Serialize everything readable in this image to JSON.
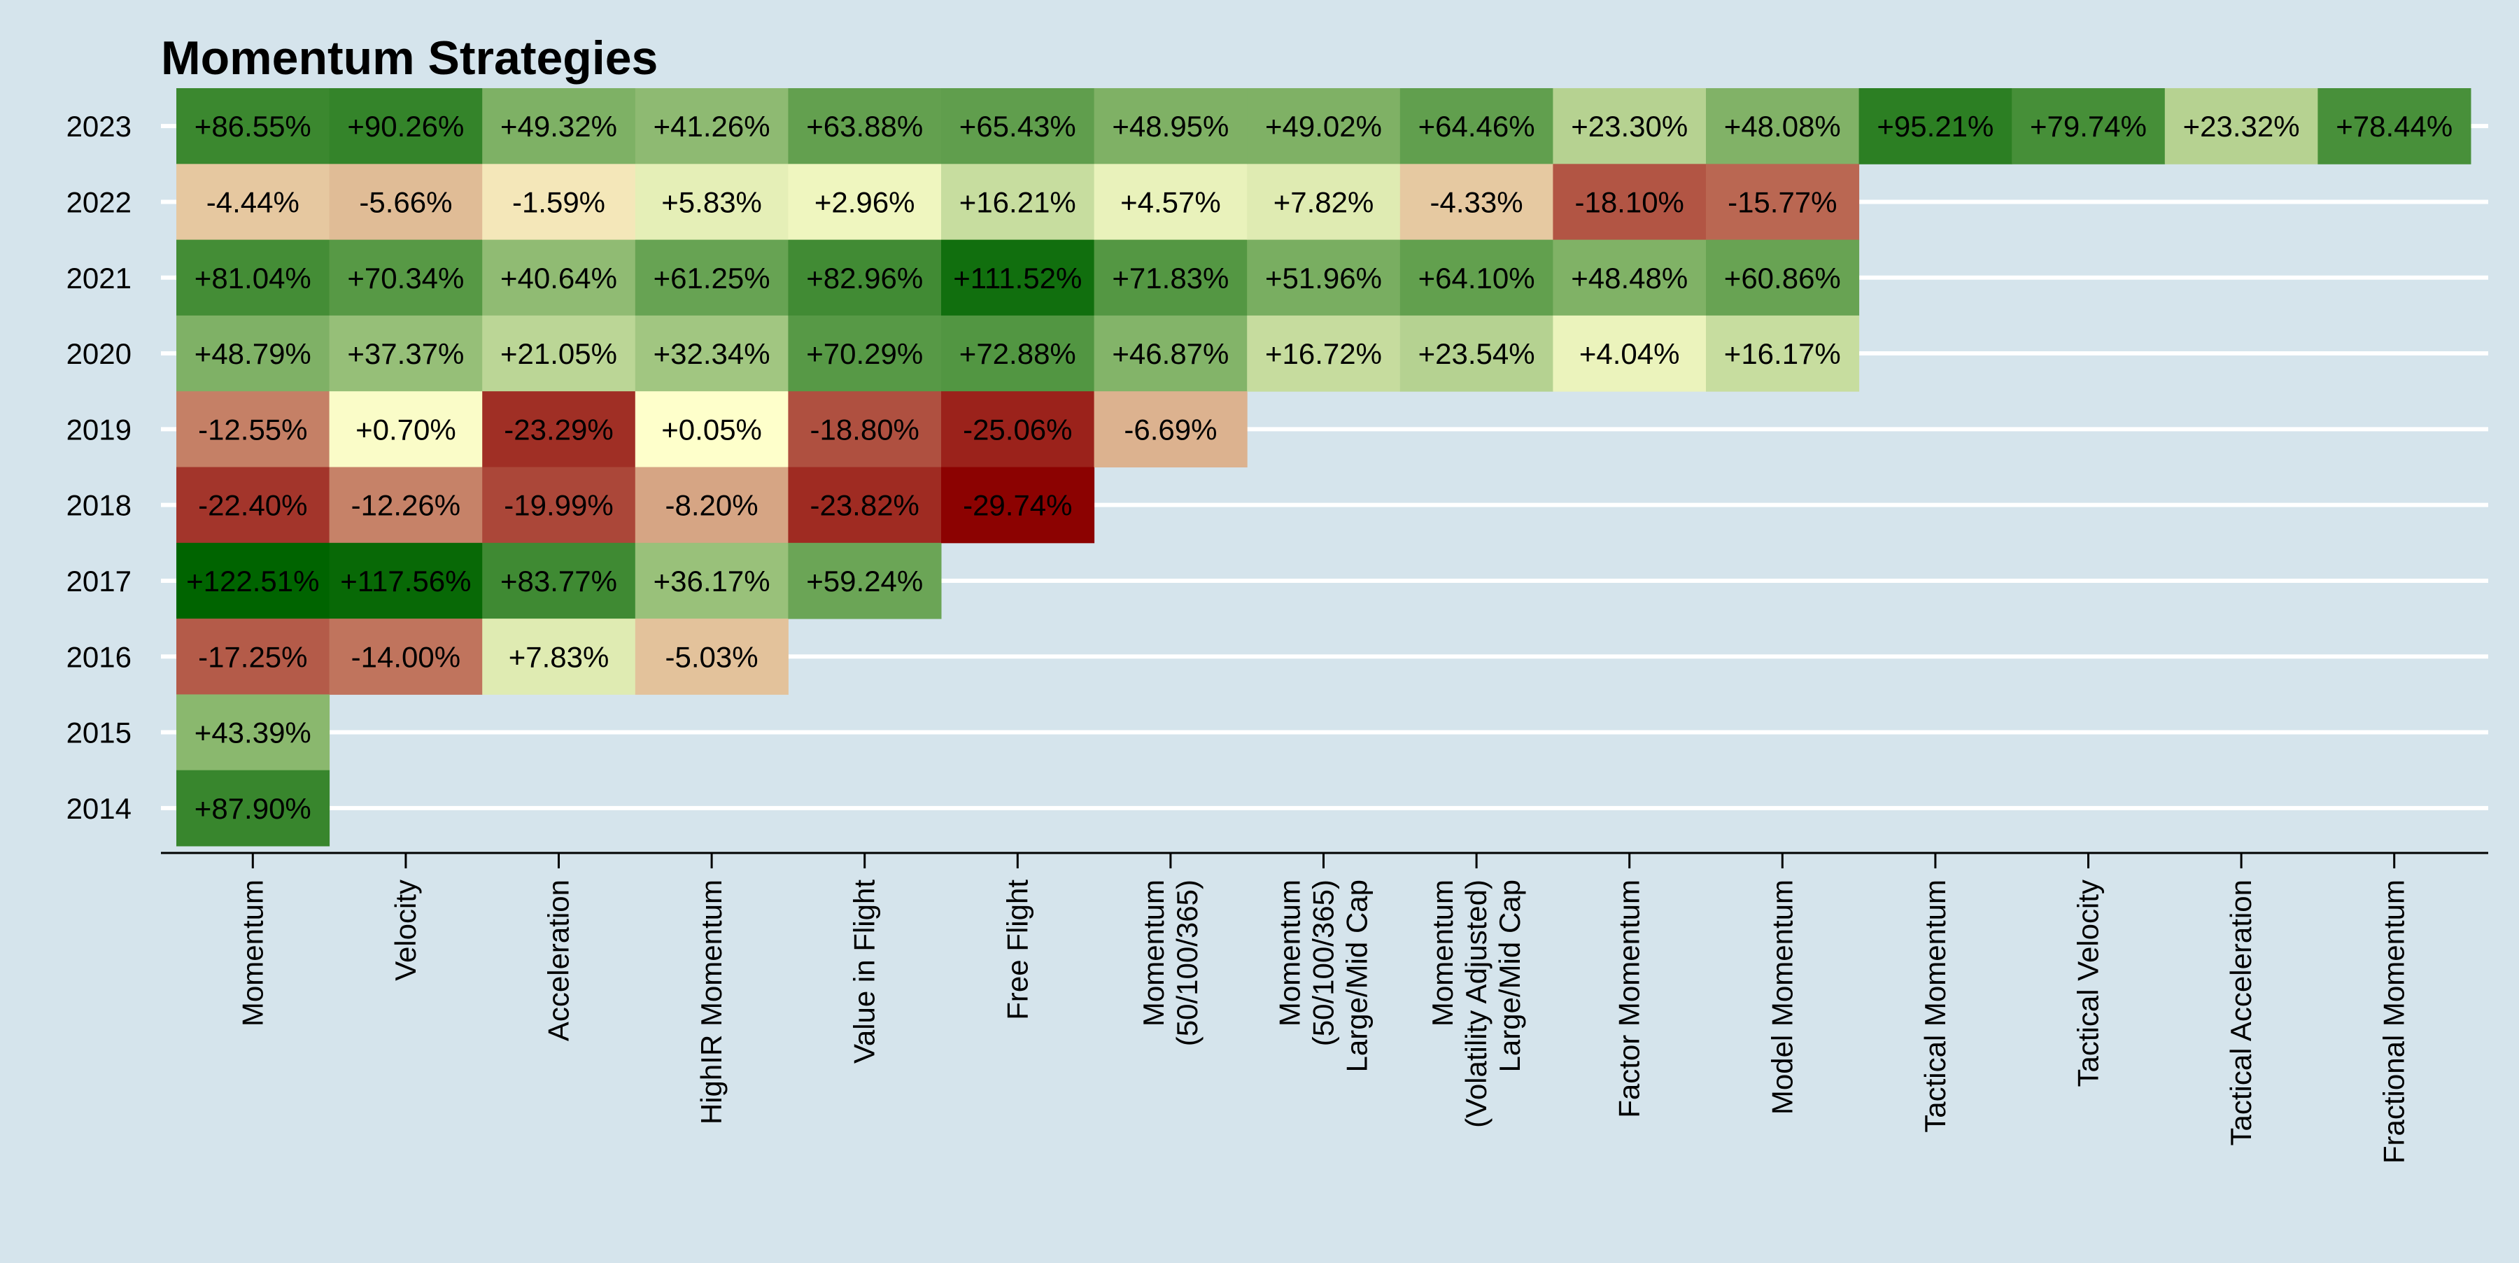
{
  "chart_data": {
    "type": "heatmap",
    "title": "Momentum Strategies",
    "xlabel": "",
    "ylabel": "",
    "grid": true,
    "legend": "none",
    "colors": {
      "background": "#d5e4ec",
      "gridline": "#ffffff",
      "axis": "#000000",
      "high": "#006400",
      "mid": "#ffffcc",
      "low": "#8b0000"
    },
    "color_scale": {
      "min": -30,
      "mid": 0,
      "max": 122.51
    },
    "years": [
      "2023",
      "2022",
      "2021",
      "2020",
      "2019",
      "2018",
      "2017",
      "2016",
      "2015",
      "2014"
    ],
    "strategies": [
      {
        "label_lines": [
          "Momentum"
        ],
        "values": [
          86.55,
          -4.44,
          81.04,
          48.79,
          -12.55,
          -22.4,
          122.51,
          -17.25,
          43.39,
          87.9
        ],
        "labels": [
          "+86.55%",
          "-4.44%",
          "+81.04%",
          "+48.79%",
          "-12.55%",
          "-22.40%",
          "+122.51%",
          "-17.25%",
          "+43.39%",
          "+87.90%"
        ]
      },
      {
        "label_lines": [
          "Velocity"
        ],
        "values": [
          90.26,
          -5.66,
          70.34,
          37.37,
          0.7,
          -12.26,
          117.56,
          -14.0,
          null,
          null
        ],
        "labels": [
          "+90.26%",
          "-5.66%",
          "+70.34%",
          "+37.37%",
          "+0.70%",
          "-12.26%",
          "+117.56%",
          "-14.00%",
          "",
          ""
        ]
      },
      {
        "label_lines": [
          "Acceleration"
        ],
        "values": [
          49.32,
          -1.59,
          40.64,
          21.05,
          -23.29,
          -19.99,
          83.77,
          7.83,
          null,
          null
        ],
        "labels": [
          "+49.32%",
          "-1.59%",
          "+40.64%",
          "+21.05%",
          "-23.29%",
          "-19.99%",
          "+83.77%",
          "+7.83%",
          "",
          ""
        ]
      },
      {
        "label_lines": [
          "HighIR Momentum"
        ],
        "values": [
          41.26,
          5.83,
          61.25,
          32.34,
          0.05,
          -8.2,
          36.17,
          -5.03,
          null,
          null
        ],
        "labels": [
          "+41.26%",
          "+5.83%",
          "+61.25%",
          "+32.34%",
          "+0.05%",
          "-8.20%",
          "+36.17%",
          "-5.03%",
          "",
          ""
        ]
      },
      {
        "label_lines": [
          "Value in Flight"
        ],
        "values": [
          63.88,
          2.96,
          82.96,
          70.29,
          -18.8,
          -23.82,
          59.24,
          null,
          null,
          null
        ],
        "labels": [
          "+63.88%",
          "+2.96%",
          "+82.96%",
          "+70.29%",
          "-18.80%",
          "-23.82%",
          "+59.24%",
          "",
          "",
          ""
        ]
      },
      {
        "label_lines": [
          "Free Flight"
        ],
        "values": [
          65.43,
          16.21,
          111.52,
          72.88,
          -25.06,
          -29.74,
          null,
          null,
          null,
          null
        ],
        "labels": [
          "+65.43%",
          "+16.21%",
          "+111.52%",
          "+72.88%",
          "-25.06%",
          "-29.74%",
          "",
          "",
          "",
          ""
        ]
      },
      {
        "label_lines": [
          "Momentum",
          "(50/100/365)"
        ],
        "values": [
          48.95,
          4.57,
          71.83,
          46.87,
          -6.69,
          null,
          null,
          null,
          null,
          null
        ],
        "labels": [
          "+48.95%",
          "+4.57%",
          "+71.83%",
          "+46.87%",
          "-6.69%",
          "",
          "",
          "",
          "",
          ""
        ]
      },
      {
        "label_lines": [
          "Momentum",
          "(50/100/365)",
          "Large/Mid Cap"
        ],
        "values": [
          49.02,
          7.82,
          51.96,
          16.72,
          null,
          null,
          null,
          null,
          null,
          null
        ],
        "labels": [
          "+49.02%",
          "+7.82%",
          "+51.96%",
          "+16.72%",
          "",
          "",
          "",
          "",
          "",
          ""
        ]
      },
      {
        "label_lines": [
          "Momentum",
          "(Volatility Adjusted)",
          "Large/Mid Cap"
        ],
        "values": [
          64.46,
          -4.33,
          64.1,
          23.54,
          null,
          null,
          null,
          null,
          null,
          null
        ],
        "labels": [
          "+64.46%",
          "-4.33%",
          "+64.10%",
          "+23.54%",
          "",
          "",
          "",
          "",
          "",
          ""
        ]
      },
      {
        "label_lines": [
          "Factor Momentum"
        ],
        "values": [
          23.3,
          -18.1,
          48.48,
          4.04,
          null,
          null,
          null,
          null,
          null,
          null
        ],
        "labels": [
          "+23.30%",
          "-18.10%",
          "+48.48%",
          "+4.04%",
          "",
          "",
          "",
          "",
          "",
          ""
        ]
      },
      {
        "label_lines": [
          "Model Momentum"
        ],
        "values": [
          48.08,
          -15.77,
          60.86,
          16.17,
          null,
          null,
          null,
          null,
          null,
          null
        ],
        "labels": [
          "+48.08%",
          "-15.77%",
          "+60.86%",
          "+16.17%",
          "",
          "",
          "",
          "",
          "",
          ""
        ]
      },
      {
        "label_lines": [
          "Tactical Momentum"
        ],
        "values": [
          95.21,
          null,
          null,
          null,
          null,
          null,
          null,
          null,
          null,
          null
        ],
        "labels": [
          "+95.21%",
          "",
          "",
          "",
          "",
          "",
          "",
          "",
          "",
          ""
        ]
      },
      {
        "label_lines": [
          "Tactical Velocity"
        ],
        "values": [
          79.74,
          null,
          null,
          null,
          null,
          null,
          null,
          null,
          null,
          null
        ],
        "labels": [
          "+79.74%",
          "",
          "",
          "",
          "",
          "",
          "",
          "",
          "",
          ""
        ]
      },
      {
        "label_lines": [
          "Tactical Acceleration"
        ],
        "values": [
          23.32,
          null,
          null,
          null,
          null,
          null,
          null,
          null,
          null,
          null
        ],
        "labels": [
          "+23.32%",
          "",
          "",
          "",
          "",
          "",
          "",
          "",
          "",
          ""
        ]
      },
      {
        "label_lines": [
          "Fractional Momentum"
        ],
        "values": [
          78.44,
          null,
          null,
          null,
          null,
          null,
          null,
          null,
          null,
          null
        ],
        "labels": [
          "+78.44%",
          "",
          "",
          "",
          "",
          "",
          "",
          "",
          "",
          ""
        ]
      }
    ]
  }
}
